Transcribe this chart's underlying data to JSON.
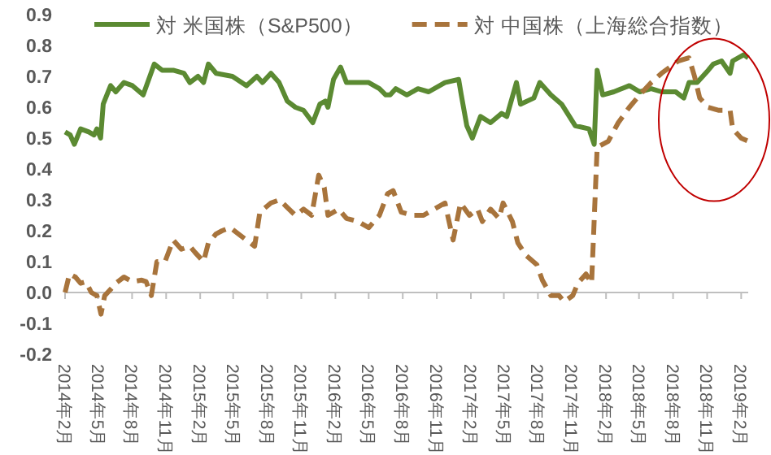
{
  "chart_data": {
    "type": "line",
    "legend": "top",
    "ylim": [
      -0.2,
      0.9
    ],
    "yticks": [
      -0.2,
      -0.1,
      {
        "value": 0,
        "label": "0.0"
      },
      0.1,
      0.2,
      0.3,
      0.4,
      0.5,
      0.6,
      0.7,
      0.8,
      0.9
    ],
    "xlim": [
      "2014-02-01",
      "2019-02-20"
    ],
    "xticks": [
      {
        "value": "2014-02-01",
        "label": "2014年2月"
      },
      {
        "value": "2014-05-01",
        "label": "2014年5月"
      },
      {
        "value": "2014-08-01",
        "label": "2014年8月"
      },
      {
        "value": "2014-11-01",
        "label": "2014年11月"
      },
      {
        "value": "2015-02-01",
        "label": "2015年2月"
      },
      {
        "value": "2015-05-01",
        "label": "2015年5月"
      },
      {
        "value": "2015-08-01",
        "label": "2015年8月"
      },
      {
        "value": "2015-11-01",
        "label": "2015年11月"
      },
      {
        "value": "2016-02-01",
        "label": "2016年2月"
      },
      {
        "value": "2016-05-01",
        "label": "2016年5月"
      },
      {
        "value": "2016-08-01",
        "label": "2016年8月"
      },
      {
        "value": "2016-11-01",
        "label": "2016年11月"
      },
      {
        "value": "2017-02-01",
        "label": "2017年2月"
      },
      {
        "value": "2017-05-01",
        "label": "2017年5月"
      },
      {
        "value": "2017-08-01",
        "label": "2017年8月"
      },
      {
        "value": "2017-11-01",
        "label": "2017年11月"
      },
      {
        "value": "2018-02-01",
        "label": "2018年2月"
      },
      {
        "value": "2018-05-01",
        "label": "2018年5月"
      },
      {
        "value": "2018-08-01",
        "label": "2018年8月"
      },
      {
        "value": "2018-11-01",
        "label": "2018年11月"
      },
      {
        "value": "2019-02-01",
        "label": "2019年2月"
      }
    ],
    "series": [
      {
        "name": "対 米国株（S&P500）",
        "color": "#5b8a32",
        "line_style": "solid",
        "x": [
          "2014-02-01",
          "2014-02-15",
          "2014-02-26",
          "2014-03-15",
          "2014-04-06",
          "2014-04-20",
          "2014-04-28",
          "2014-05-08",
          "2014-05-15",
          "2014-06-04",
          "2014-06-18",
          "2014-07-10",
          "2014-08-02",
          "2014-08-31",
          "2014-09-30",
          "2014-10-21",
          "2014-11-20",
          "2014-12-19",
          "2015-01-04",
          "2015-01-26",
          "2015-02-10",
          "2015-02-23",
          "2015-03-16",
          "2015-04-29",
          "2015-06-06",
          "2015-07-04",
          "2015-07-19",
          "2015-08-11",
          "2015-09-02",
          "2015-09-24",
          "2015-10-16",
          "2015-11-07",
          "2015-12-02",
          "2015-12-21",
          "2016-01-05",
          "2016-01-12",
          "2016-01-27",
          "2016-02-15",
          "2016-03-02",
          "2016-04-02",
          "2016-05-01",
          "2016-05-30",
          "2016-06-16",
          "2016-06-28",
          "2016-07-13",
          "2016-08-12",
          "2016-09-11",
          "2016-10-10",
          "2016-11-23",
          "2016-12-30",
          "2017-01-06",
          "2017-01-21",
          "2017-02-05",
          "2017-02-27",
          "2017-03-26",
          "2017-04-25",
          "2017-05-09",
          "2017-06-04",
          "2017-06-15",
          "2017-07-21",
          "2017-08-06",
          "2017-09-05",
          "2017-10-04",
          "2017-11-10",
          "2017-12-17",
          "2017-12-31",
          "2018-01-08",
          "2018-01-23",
          "2018-02-22",
          "2018-04-05",
          "2018-05-03",
          "2018-06-03",
          "2018-07-01",
          "2018-08-08",
          "2018-08-30",
          "2018-09-13",
          "2018-10-05",
          "2018-11-04",
          "2018-11-18",
          "2018-12-10",
          "2019-01-02",
          "2019-01-09",
          "2019-02-08",
          "2019-02-20"
        ],
        "values": [
          0.52,
          0.51,
          0.48,
          0.53,
          0.52,
          0.51,
          0.53,
          0.5,
          0.61,
          0.67,
          0.65,
          0.68,
          0.67,
          0.64,
          0.74,
          0.72,
          0.72,
          0.71,
          0.68,
          0.7,
          0.68,
          0.74,
          0.71,
          0.7,
          0.67,
          0.7,
          0.68,
          0.71,
          0.68,
          0.62,
          0.6,
          0.59,
          0.55,
          0.61,
          0.62,
          0.6,
          0.69,
          0.73,
          0.68,
          0.68,
          0.68,
          0.66,
          0.64,
          0.64,
          0.66,
          0.64,
          0.66,
          0.65,
          0.68,
          0.69,
          0.64,
          0.54,
          0.5,
          0.57,
          0.55,
          0.58,
          0.57,
          0.68,
          0.61,
          0.63,
          0.68,
          0.64,
          0.61,
          0.54,
          0.53,
          0.48,
          0.72,
          0.64,
          0.65,
          0.67,
          0.65,
          0.66,
          0.65,
          0.65,
          0.63,
          0.68,
          0.68,
          0.72,
          0.74,
          0.75,
          0.71,
          0.75,
          0.77,
          0.76
        ]
      },
      {
        "name": "対 中国株（上海総合指数）",
        "color": "#a8743c",
        "line_style": "dashed",
        "x": [
          "2014-02-01",
          "2014-02-13",
          "2014-03-01",
          "2014-03-15",
          "2014-03-29",
          "2014-04-13",
          "2014-04-28",
          "2014-05-09",
          "2014-05-19",
          "2014-06-04",
          "2014-06-18",
          "2014-07-10",
          "2014-08-02",
          "2014-08-27",
          "2014-09-08",
          "2014-09-22",
          "2014-10-07",
          "2014-10-29",
          "2014-11-20",
          "2014-12-12",
          "2015-01-04",
          "2015-01-18",
          "2015-02-10",
          "2015-02-23",
          "2015-03-16",
          "2015-04-01",
          "2015-04-23",
          "2015-05-15",
          "2015-06-06",
          "2015-06-28",
          "2015-07-12",
          "2015-08-11",
          "2015-09-03",
          "2015-10-16",
          "2015-11-07",
          "2015-11-29",
          "2015-12-18",
          "2016-01-02",
          "2016-01-12",
          "2016-02-10",
          "2016-03-02",
          "2016-04-02",
          "2016-05-01",
          "2016-05-30",
          "2016-06-21",
          "2016-07-06",
          "2016-07-28",
          "2016-08-27",
          "2016-09-26",
          "2016-10-25",
          "2016-11-23",
          "2016-12-15",
          "2017-01-04",
          "2017-01-28",
          "2017-02-19",
          "2017-03-04",
          "2017-03-26",
          "2017-04-18",
          "2017-04-29",
          "2017-05-24",
          "2017-06-08",
          "2017-06-30",
          "2017-07-29",
          "2017-08-13",
          "2017-09-05",
          "2017-09-27",
          "2017-10-11",
          "2017-11-03",
          "2017-11-17",
          "2017-12-09",
          "2017-12-24",
          "2018-01-08",
          "2018-02-07",
          "2018-03-06",
          "2018-04-05",
          "2018-05-03",
          "2018-06-03",
          "2018-07-01",
          "2018-08-15",
          "2018-09-13",
          "2018-09-28",
          "2018-10-12",
          "2018-11-04",
          "2018-12-03",
          "2019-01-02",
          "2019-01-09",
          "2019-02-01",
          "2019-02-20"
        ],
        "values": [
          0.0,
          0.06,
          0.05,
          0.03,
          0.035,
          0.0,
          -0.01,
          -0.07,
          -0.01,
          0.01,
          0.03,
          0.05,
          0.035,
          0.04,
          0.035,
          -0.01,
          0.1,
          0.1,
          0.17,
          0.14,
          0.15,
          0.13,
          0.1,
          0.16,
          0.19,
          0.2,
          0.21,
          0.19,
          0.17,
          0.15,
          0.26,
          0.29,
          0.3,
          0.25,
          0.27,
          0.25,
          0.38,
          0.34,
          0.25,
          0.27,
          0.24,
          0.23,
          0.21,
          0.25,
          0.32,
          0.33,
          0.26,
          0.25,
          0.25,
          0.27,
          0.29,
          0.17,
          0.29,
          0.25,
          0.27,
          0.23,
          0.27,
          0.24,
          0.29,
          0.23,
          0.16,
          0.12,
          0.09,
          0.04,
          -0.01,
          -0.01,
          -0.03,
          -0.01,
          0.03,
          0.06,
          0.03,
          0.47,
          0.49,
          0.55,
          0.6,
          0.64,
          0.68,
          0.71,
          0.75,
          0.76,
          0.7,
          0.63,
          0.6,
          0.59,
          0.59,
          0.53,
          0.5,
          0.49
        ]
      }
    ]
  }
}
